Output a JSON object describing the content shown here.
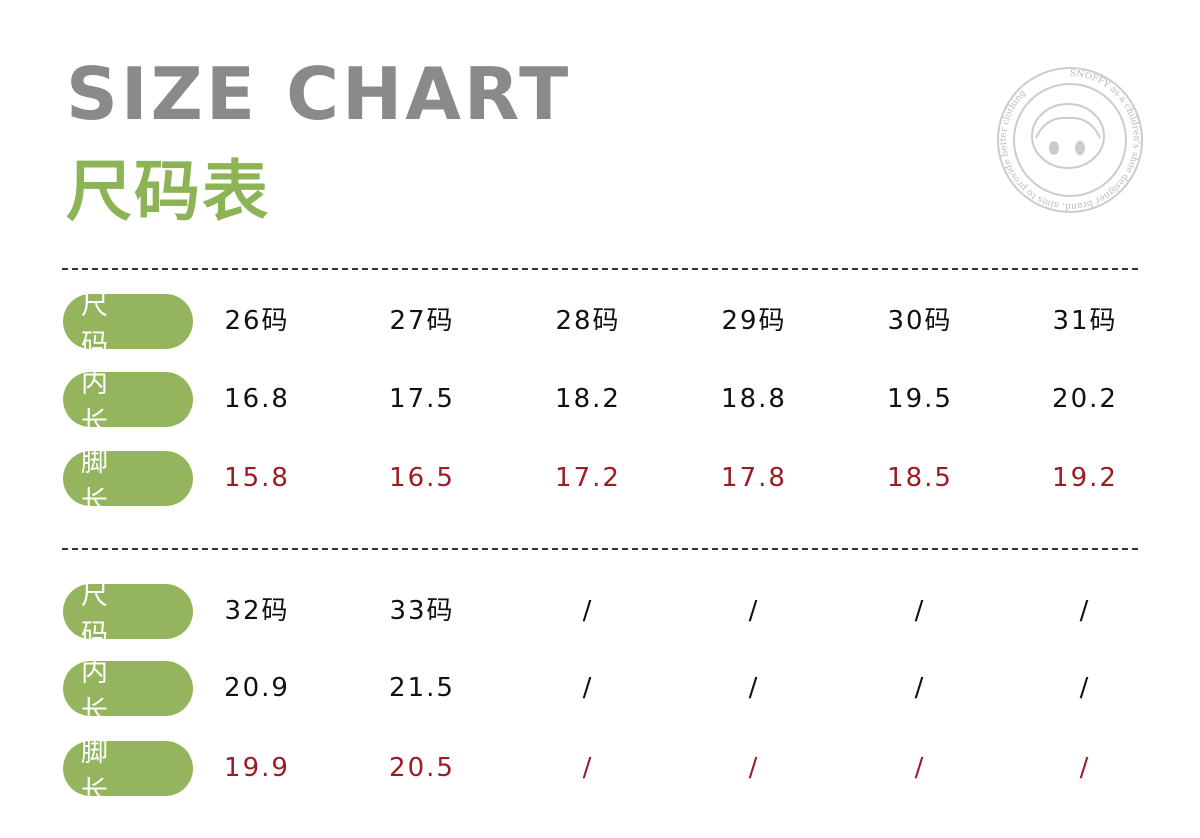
{
  "title_en": "SIZE CHART",
  "title_cn": "尺码表",
  "logo_text": "SNOFFY as a children's shoe designer brand, aims to provide better clothing",
  "colors": {
    "green": "#94b55e",
    "red": "#9b1c24",
    "gray": "#8a8a8a"
  },
  "tables": [
    {
      "rows": [
        {
          "label": "尺 码",
          "values": [
            "26码",
            "27码",
            "28码",
            "29码",
            "30码",
            "31码"
          ]
        },
        {
          "label": "内 长",
          "values": [
            "16.8",
            "17.5",
            "18.2",
            "18.8",
            "19.5",
            "20.2"
          ]
        },
        {
          "label": "脚 长",
          "values": [
            "15.8",
            "16.5",
            "17.2",
            "17.8",
            "18.5",
            "19.2"
          ]
        }
      ]
    },
    {
      "rows": [
        {
          "label": "尺 码",
          "values": [
            "32码",
            "33码",
            "/",
            "/",
            "/",
            "/"
          ]
        },
        {
          "label": "内 长",
          "values": [
            "20.9",
            "21.5",
            "/",
            "/",
            "/",
            "/"
          ]
        },
        {
          "label": "脚 长",
          "values": [
            "19.9",
            "20.5",
            "/",
            "/",
            "/",
            "/"
          ]
        }
      ]
    }
  ]
}
